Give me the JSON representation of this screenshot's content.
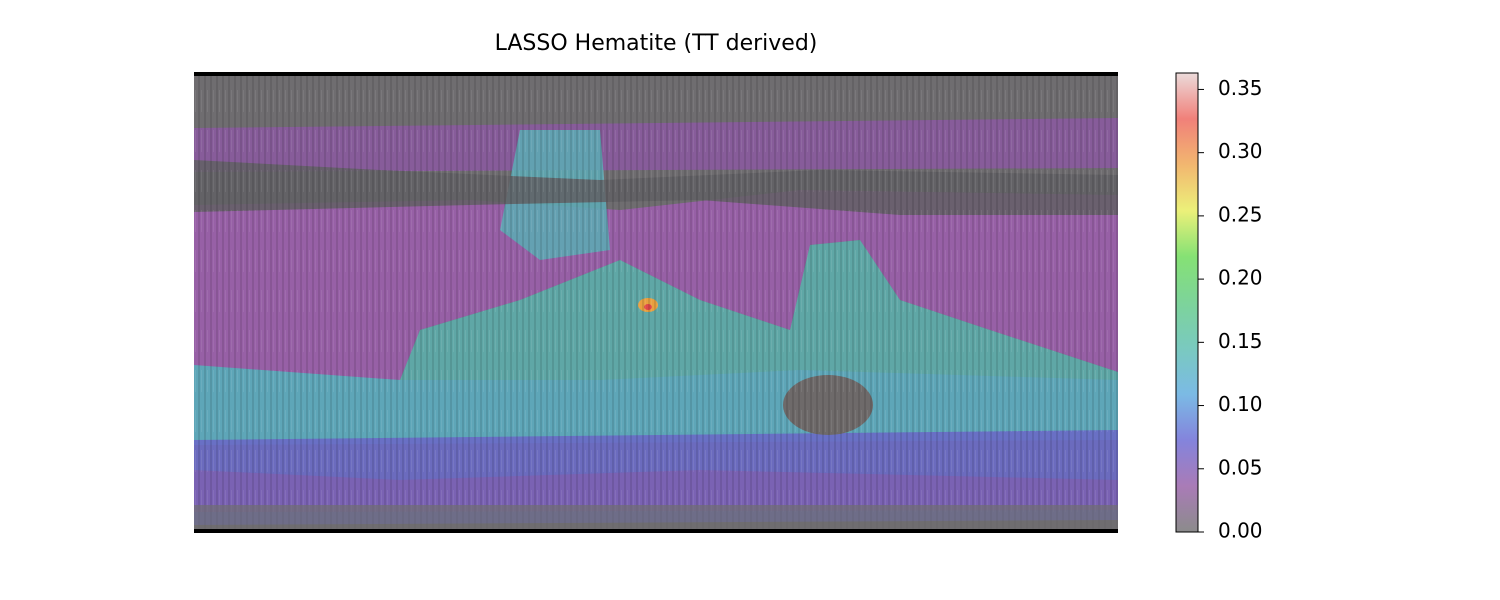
{
  "chart_data": {
    "type": "heatmap",
    "title": "LASSO Hematite (TT derived)",
    "colorbar_lim": [
      0,
      0.363
    ],
    "colorbar_ticks": [
      {
        "value": 0,
        "label": "0.00"
      },
      0.05,
      {
        "value": 0.1,
        "label": "0.10"
      },
      0.15,
      {
        "value": 0.2,
        "label": "0.20"
      },
      0.25,
      {
        "value": 0.3,
        "label": "0.30"
      },
      0.35
    ],
    "colormap": [
      "#777777",
      "#9a64aa",
      "#6e6ed6",
      "#64aee0",
      "#62c0b4",
      "#66cc88",
      "#70dc5c",
      "#e8ee62",
      "#f0aa56",
      "#ee6a62",
      "#e8d4d4"
    ]
  }
}
